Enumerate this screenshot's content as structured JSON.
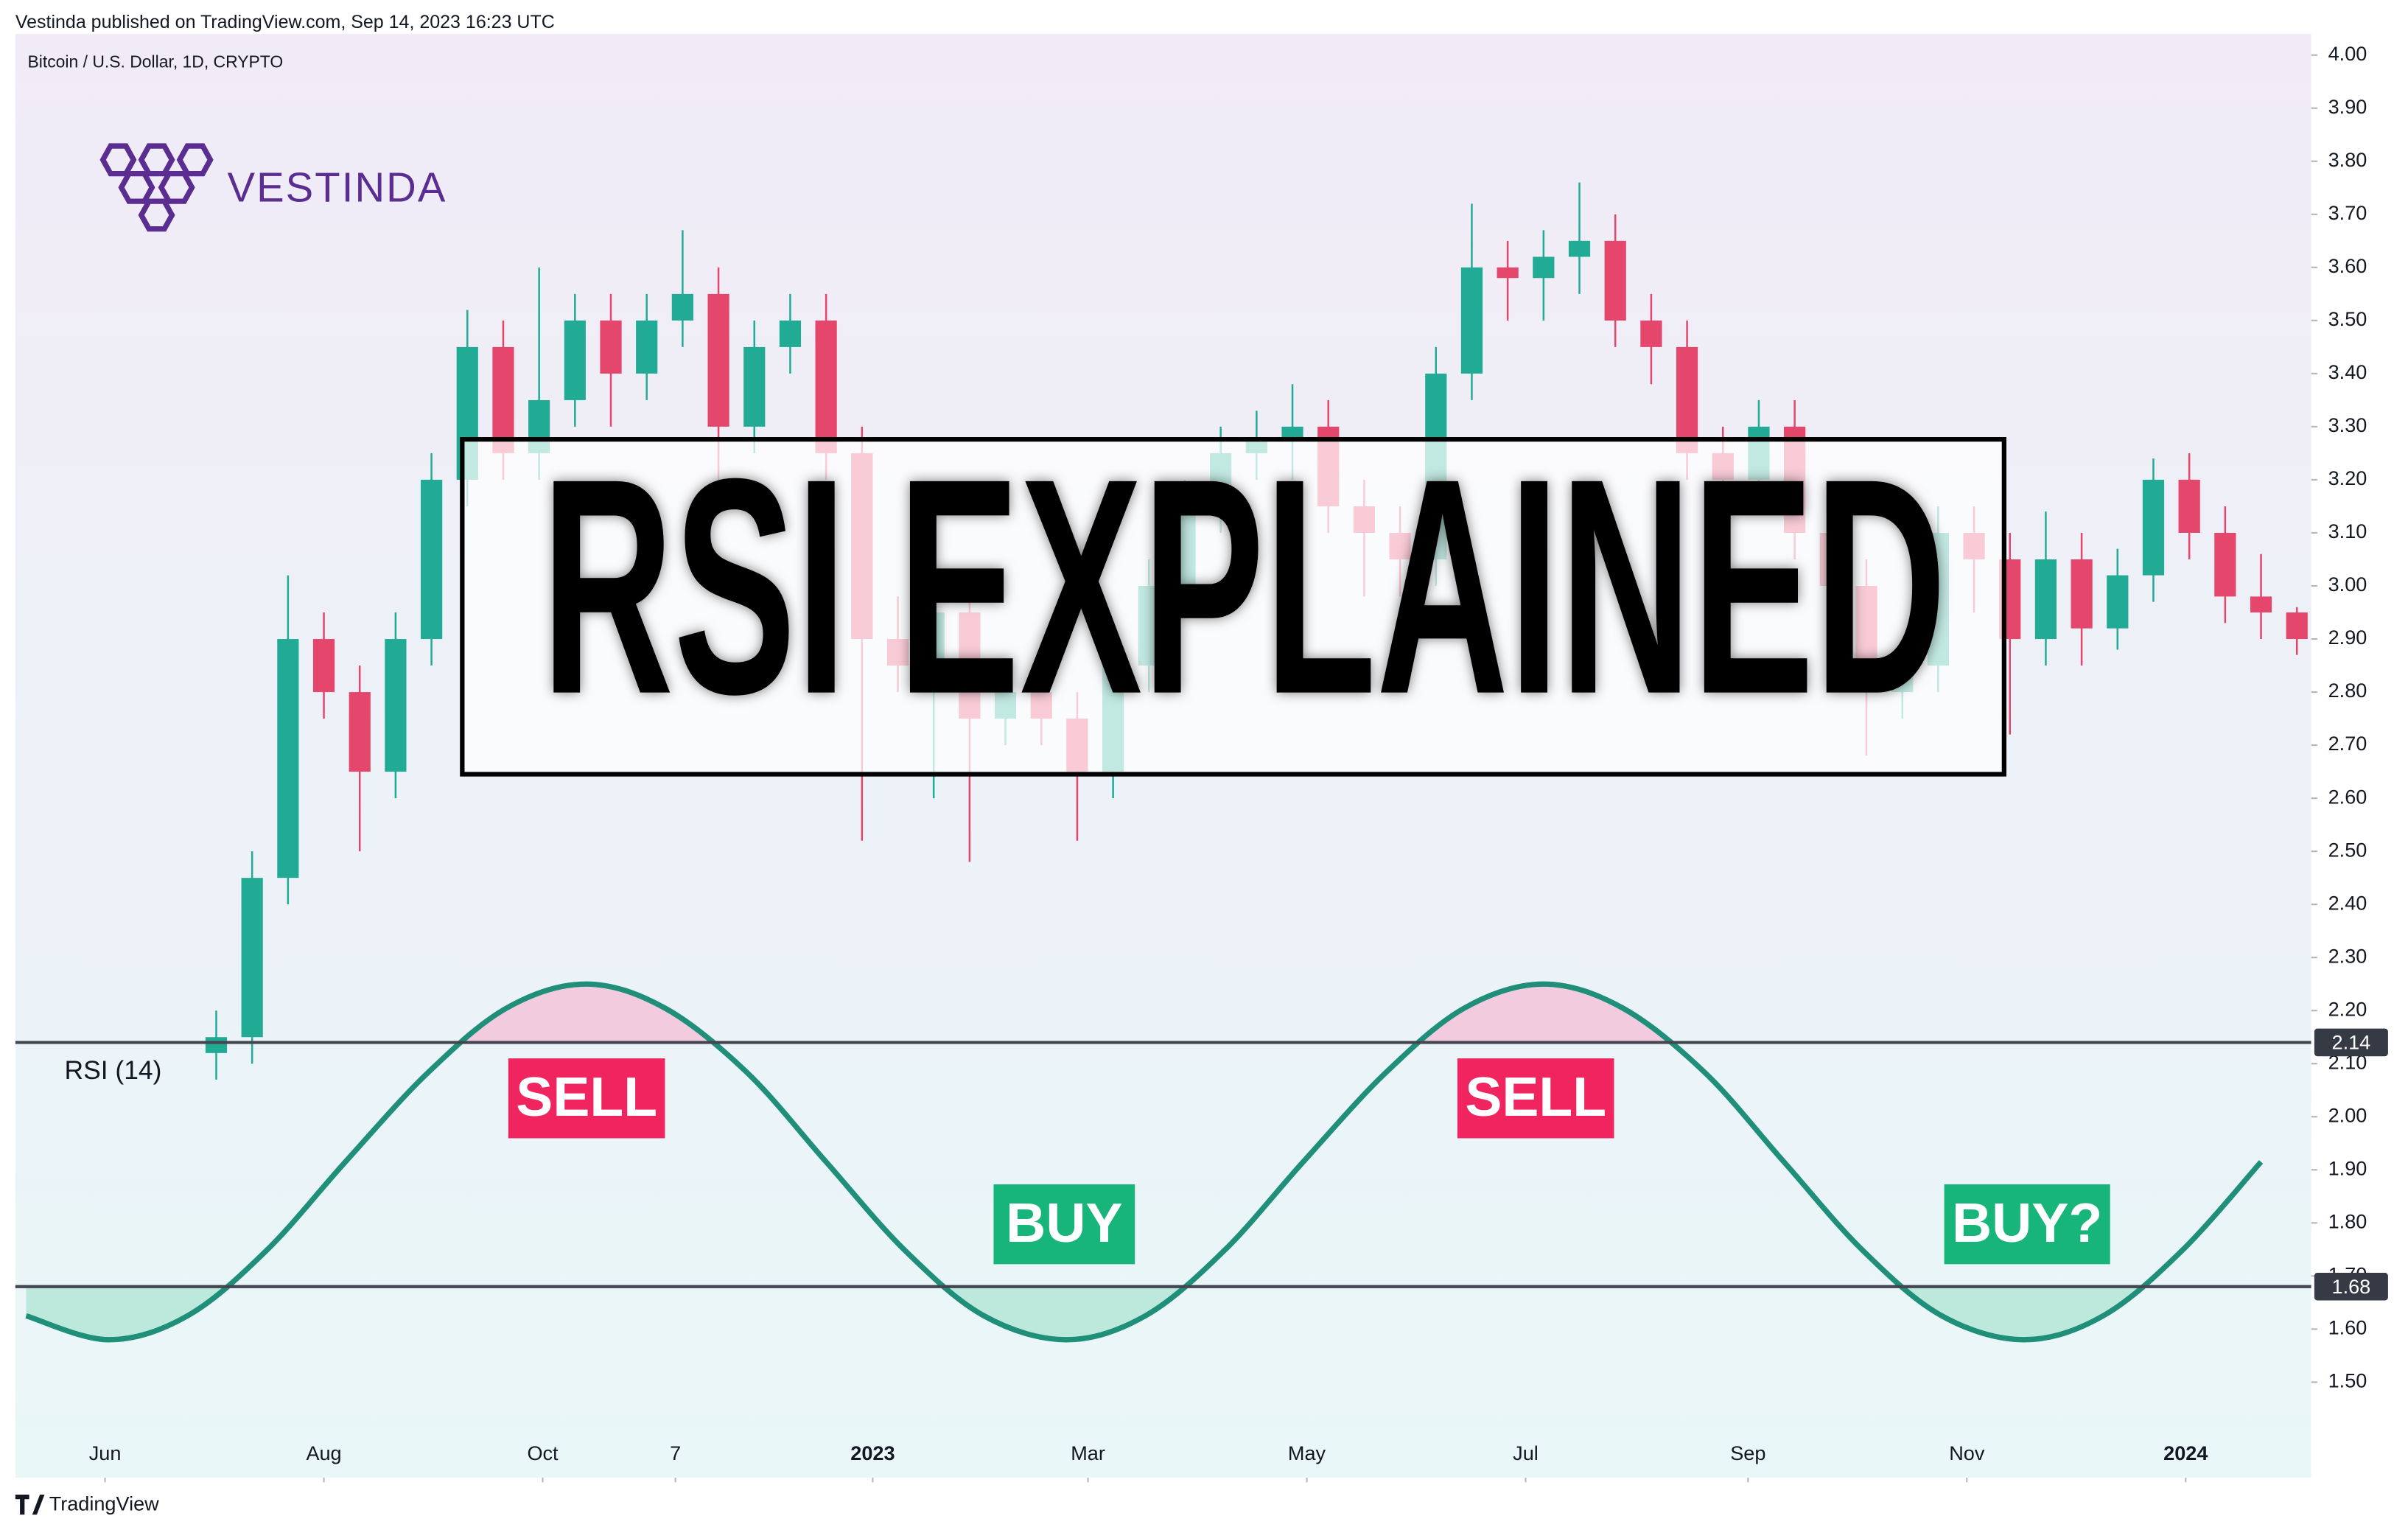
{
  "header": {
    "publisher": "Vestinda published on TradingView.com, Sep 14, 2023 16:23 UTC",
    "footer": "TradingView"
  },
  "logo": "VESTINDA",
  "chart_data": {
    "type": "candlestick",
    "symbol": "Bitcoin / U.S. Dollar, 1D, CRYPTO",
    "title": "RSI EXPLAINED",
    "up_color": "#22ab94",
    "down_color": "#e5466b",
    "x": [
      56,
      66,
      76,
      86,
      96,
      106,
      116,
      126,
      136,
      146,
      156,
      166,
      176,
      186,
      196,
      206,
      216,
      226,
      236,
      246,
      256,
      266,
      276,
      286,
      296,
      306,
      316,
      326,
      336,
      346,
      356,
      366,
      376,
      386,
      396,
      406,
      416,
      426,
      436,
      446,
      456,
      466,
      476,
      486,
      496,
      506,
      516,
      526,
      536,
      546,
      556,
      566,
      576,
      586,
      596,
      606,
      616,
      626,
      636
    ],
    "open": [
      2.12,
      2.15,
      2.45,
      2.9,
      2.8,
      2.65,
      2.9,
      3.2,
      3.45,
      3.25,
      3.35,
      3.5,
      3.4,
      3.5,
      3.55,
      3.3,
      3.45,
      3.5,
      3.25,
      2.9,
      2.85,
      2.95,
      2.75,
      2.8,
      2.75,
      2.65,
      2.85,
      3.0,
      3.15,
      3.25,
      3.28,
      3.3,
      3.15,
      3.1,
      3.05,
      3.4,
      3.6,
      3.58,
      3.62,
      3.65,
      3.5,
      3.45,
      3.25,
      3.2,
      3.3,
      3.1,
      3.0,
      2.8,
      2.85,
      3.1,
      3.05,
      2.9,
      3.05,
      2.92,
      3.02,
      3.2,
      3.1,
      2.98,
      2.95
    ],
    "high": [
      2.2,
      2.5,
      3.02,
      2.95,
      2.85,
      2.95,
      3.25,
      3.52,
      3.5,
      3.6,
      3.55,
      3.55,
      3.55,
      3.67,
      3.6,
      3.5,
      3.55,
      3.55,
      3.3,
      2.98,
      3.0,
      3.0,
      2.85,
      2.85,
      2.8,
      2.9,
      3.05,
      3.2,
      3.3,
      3.33,
      3.38,
      3.35,
      3.2,
      3.15,
      3.45,
      3.72,
      3.65,
      3.67,
      3.76,
      3.7,
      3.55,
      3.5,
      3.3,
      3.35,
      3.35,
      3.15,
      3.05,
      2.9,
      3.15,
      3.15,
      3.1,
      3.14,
      3.1,
      3.07,
      3.24,
      3.25,
      3.15,
      3.06,
      2.96
    ],
    "low": [
      2.07,
      2.1,
      2.4,
      2.75,
      2.5,
      2.6,
      2.85,
      3.15,
      3.2,
      3.2,
      3.3,
      3.3,
      3.35,
      3.45,
      3.2,
      3.25,
      3.4,
      3.2,
      2.52,
      2.8,
      2.6,
      2.48,
      2.7,
      2.7,
      2.52,
      2.6,
      2.8,
      2.95,
      3.1,
      3.2,
      3.2,
      3.1,
      2.98,
      2.98,
      3.0,
      3.35,
      3.5,
      3.5,
      3.55,
      3.45,
      3.38,
      3.2,
      3.15,
      3.15,
      3.05,
      2.95,
      2.68,
      2.75,
      2.8,
      2.95,
      2.72,
      2.85,
      2.85,
      2.88,
      2.97,
      3.05,
      2.93,
      2.9,
      2.87
    ],
    "close": [
      2.15,
      2.45,
      2.9,
      2.8,
      2.65,
      2.9,
      3.2,
      3.45,
      3.25,
      3.35,
      3.5,
      3.4,
      3.5,
      3.55,
      3.3,
      3.45,
      3.5,
      3.25,
      2.9,
      2.85,
      2.95,
      2.75,
      2.8,
      2.75,
      2.65,
      2.85,
      3.0,
      3.15,
      3.25,
      3.28,
      3.3,
      3.15,
      3.1,
      3.05,
      3.4,
      3.6,
      3.58,
      3.62,
      3.65,
      3.5,
      3.45,
      3.25,
      3.2,
      3.3,
      3.1,
      3.0,
      2.8,
      2.85,
      3.1,
      3.05,
      2.9,
      3.05,
      2.92,
      3.02,
      3.2,
      3.1,
      2.98,
      2.95,
      2.9
    ],
    "xlim": [
      0,
      640
    ],
    "xticks": [
      {
        "value": 25,
        "label": "Jun"
      },
      {
        "value": 86,
        "label": "Aug"
      },
      {
        "value": 147,
        "label": "Oct"
      },
      {
        "value": 184,
        "label": "7"
      },
      {
        "value": 239,
        "label": "2023"
      },
      {
        "value": 299,
        "label": "Mar"
      },
      {
        "value": 360,
        "label": "May"
      },
      {
        "value": 421,
        "label": "Jul"
      },
      {
        "value": 483,
        "label": "Sep"
      },
      {
        "value": 544,
        "label": "Nov"
      },
      {
        "value": 605,
        "label": "2024"
      }
    ],
    "ylim": [
      1.32,
      4.04
    ],
    "yticks": [
      {
        "value": 1.5,
        "label": "1.50"
      },
      {
        "value": 1.6,
        "label": "1.60"
      },
      {
        "value": 1.7,
        "label": "1.70"
      },
      {
        "value": 1.8,
        "label": "1.80"
      },
      {
        "value": 1.9,
        "label": "1.90"
      },
      {
        "value": 2.0,
        "label": "2.00"
      },
      {
        "value": 2.1,
        "label": "2.10"
      },
      {
        "value": 2.2,
        "label": "2.20"
      },
      {
        "value": 2.3,
        "label": "2.30"
      },
      {
        "value": 2.4,
        "label": "2.40"
      },
      {
        "value": 2.5,
        "label": "2.50"
      },
      {
        "value": 2.6,
        "label": "2.60"
      },
      {
        "value": 2.7,
        "label": "2.70"
      },
      {
        "value": 2.8,
        "label": "2.80"
      },
      {
        "value": 2.9,
        "label": "2.90"
      },
      {
        "value": 3.0,
        "label": "3.00"
      },
      {
        "value": 3.1,
        "label": "3.10"
      },
      {
        "value": 3.2,
        "label": "3.20"
      },
      {
        "value": 3.3,
        "label": "3.30"
      },
      {
        "value": 3.4,
        "label": "3.40"
      },
      {
        "value": 3.5,
        "label": "3.50"
      },
      {
        "value": 3.6,
        "label": "3.60"
      },
      {
        "value": 3.7,
        "label": "3.70"
      },
      {
        "value": 3.8,
        "label": "3.80"
      },
      {
        "value": 3.9,
        "label": "3.90"
      },
      {
        "value": 4.0,
        "label": "4.00"
      }
    ],
    "levels": [
      2.14,
      1.68
    ],
    "rsi": {
      "name": "RSI (14)",
      "color": "#1f8f7a",
      "x": [
        3,
        26,
        48,
        70,
        92,
        115,
        137,
        159,
        181,
        204,
        226,
        248,
        270,
        293,
        315,
        337,
        359,
        382,
        404,
        426,
        448,
        471,
        493,
        515,
        537,
        560,
        582,
        604,
        626
      ],
      "values": [
        1.625,
        1.58,
        1.625,
        1.748,
        1.915,
        2.083,
        2.205,
        2.25,
        2.205,
        2.083,
        1.915,
        1.748,
        1.625,
        1.58,
        1.625,
        1.748,
        1.915,
        2.083,
        2.205,
        2.25,
        2.205,
        2.083,
        1.915,
        1.748,
        1.625,
        1.58,
        1.625,
        1.748,
        1.915
      ]
    },
    "annotations": [
      {
        "text": "SELL",
        "color": "#f0245e"
      },
      {
        "text": "BUY",
        "color": "#17b57a"
      },
      {
        "text": "SELL",
        "color": "#f0245e"
      },
      {
        "text": "BUY?",
        "color": "#17b57a"
      }
    ]
  }
}
